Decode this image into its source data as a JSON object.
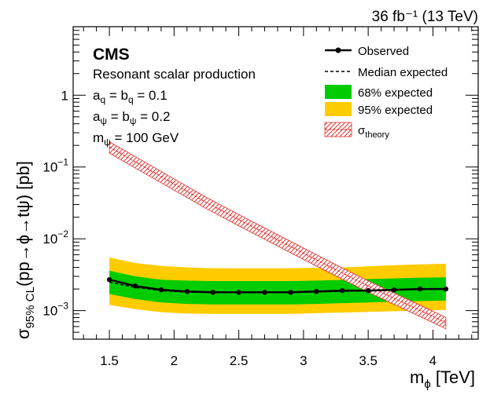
{
  "chart_data": {
    "type": "line",
    "title": "36 fb⁻¹ (13 TeV)",
    "experiment": "CMS",
    "annotations": {
      "process": "Resonant scalar production",
      "aq_main": "a",
      "aq_sub": "q",
      "aq_eq": " = b",
      "aq_sub2": "q",
      "aq_val": " = 0.1",
      "apsi_main": "a",
      "apsi_sub": "ψ",
      "apsi_eq": " = b",
      "apsi_sub2": "ψ",
      "apsi_val": " = 0.2",
      "mpsi_main": "m",
      "mpsi_sub": "ψ",
      "mpsi_val": " = 100 GeV"
    },
    "xlabel": {
      "main": "m",
      "sub": "ϕ",
      "unit": " [TeV]"
    },
    "ylabel": {
      "main": "σ",
      "sub": "95% CL",
      "rest": "(pp→ϕ→tψ) [pb]"
    },
    "xlim": [
      1.22,
      4.35
    ],
    "ylim": [
      0.0004,
      9
    ],
    "yscale": "log",
    "x_ticks": [
      1.5,
      2,
      2.5,
      3,
      3.5,
      4
    ],
    "x_tick_labels": [
      "1.5",
      "2",
      "2.5",
      "3",
      "3.5",
      "4"
    ],
    "y_ticks": [
      {
        "value": 0.001,
        "base": "10",
        "exp": "−3"
      },
      {
        "value": 0.01,
        "base": "10",
        "exp": "−2"
      },
      {
        "value": 0.1,
        "base": "10",
        "exp": "−1"
      },
      {
        "value": 1,
        "base": "1",
        "exp": ""
      }
    ],
    "x": [
      1.5,
      1.7,
      1.9,
      2.1,
      2.3,
      2.5,
      2.7,
      2.9,
      3.1,
      3.3,
      3.5,
      3.7,
      3.9,
      4.1
    ],
    "observed": [
      0.0027,
      0.0022,
      0.00195,
      0.00185,
      0.0018,
      0.0018,
      0.0018,
      0.0018,
      0.00185,
      0.0019,
      0.0019,
      0.00195,
      0.002,
      0.002
    ],
    "expected": [
      0.0025,
      0.0021,
      0.0019,
      0.0018,
      0.0018,
      0.0018,
      0.0018,
      0.0018,
      0.00183,
      0.00185,
      0.0019,
      0.00195,
      0.002,
      0.002
    ],
    "band68_low": [
      0.0017,
      0.00145,
      0.0013,
      0.00124,
      0.00122,
      0.00122,
      0.00122,
      0.00122,
      0.00124,
      0.00127,
      0.0013,
      0.00133,
      0.00136,
      0.00138
    ],
    "band68_high": [
      0.0036,
      0.003,
      0.0027,
      0.00262,
      0.00258,
      0.00258,
      0.00258,
      0.00258,
      0.00262,
      0.00268,
      0.00275,
      0.00281,
      0.00288,
      0.0029
    ],
    "band95_low": [
      0.0012,
      0.00105,
      0.00095,
      0.00091,
      0.0009,
      0.0009,
      0.0009,
      0.0009,
      0.00092,
      0.00094,
      0.00096,
      0.00098,
      0.001,
      0.00102
    ],
    "band95_high": [
      0.0055,
      0.0046,
      0.0042,
      0.004,
      0.0039,
      0.0039,
      0.0039,
      0.0039,
      0.00395,
      0.004,
      0.00415,
      0.0043,
      0.0044,
      0.0045
    ],
    "theory": {
      "x": [
        1.5,
        1.75,
        2.0,
        2.25,
        2.5,
        2.75,
        3.0,
        3.25,
        3.5,
        3.75,
        4.0,
        4.1
      ],
      "central": [
        0.19,
        0.105,
        0.058,
        0.032,
        0.0185,
        0.0108,
        0.0063,
        0.0037,
        0.0022,
        0.00135,
        0.00083,
        0.00068
      ],
      "rel_width": 0.18
    },
    "legend": {
      "position": "top-right",
      "observed": "Observed",
      "expected": "Median expected",
      "band68": "68% expected",
      "band95": "95% expected",
      "theory_main": "σ",
      "theory_sub": "theory"
    },
    "colors": {
      "band68": "#00cc00",
      "band95": "#ffcc00",
      "theory": "#e03030",
      "observed": "#000000"
    }
  }
}
